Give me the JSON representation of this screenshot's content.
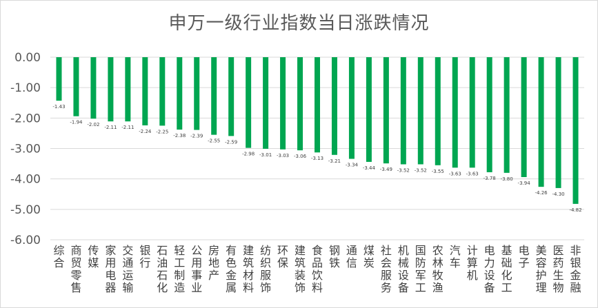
{
  "chart_data": {
    "type": "bar",
    "title": "申万一级行业指数当日涨跌情况",
    "xlabel": "",
    "ylabel": "",
    "ylim": [
      -6.0,
      0.0
    ],
    "yticks": [
      "0.00",
      "-1.00",
      "-2.00",
      "-3.00",
      "-4.00",
      "-5.00",
      "-6.00"
    ],
    "ytick_values": [
      0,
      -1,
      -2,
      -3,
      -4,
      -5,
      -6
    ],
    "grid": true,
    "legend": "none",
    "bar_color": "#00a651",
    "categories": [
      "综合",
      "商贸零售",
      "传媒",
      "家用电器",
      "交通运输",
      "银行",
      "石油石化",
      "轻工制造",
      "公用事业",
      "房地产",
      "有色金属",
      "建筑材料",
      "纺织服饰",
      "环保",
      "建筑装饰",
      "食品饮料",
      "钢铁",
      "通信",
      "煤炭",
      "社会服务",
      "机械设备",
      "国防军工",
      "农林牧渔",
      "汽车",
      "计算机",
      "电力设备",
      "基础化工",
      "电子",
      "美容护理",
      "医药生物",
      "非银金融"
    ],
    "values": [
      -1.43,
      -1.94,
      -2.02,
      -2.11,
      -2.11,
      -2.24,
      -2.25,
      -2.38,
      -2.39,
      -2.55,
      -2.59,
      -2.98,
      -3.01,
      -3.03,
      -3.06,
      -3.13,
      -3.21,
      -3.34,
      -3.44,
      -3.49,
      -3.52,
      -3.52,
      -3.55,
      -3.63,
      -3.63,
      -3.78,
      -3.8,
      -3.94,
      -4.26,
      -4.3,
      -4.82
    ],
    "data_labels": [
      "-1.43",
      "-1.94",
      "-2.02",
      "-2.11",
      "-2.11",
      "-2.24",
      "-2.25",
      "-2.38",
      "-2.39",
      "-2.55",
      "-2.59",
      "-2.98",
      "-3.01",
      "-3.03",
      "-3.06",
      "-3.13",
      "-3.21",
      "-3.34",
      "-3.44",
      "-3.49",
      "-3.52",
      "-3.52",
      "-3.55",
      "-3.63",
      "-3.63",
      "-3.78",
      "-3.80",
      "-3.94",
      "-4.26",
      "-4.30",
      "-4.82"
    ]
  }
}
